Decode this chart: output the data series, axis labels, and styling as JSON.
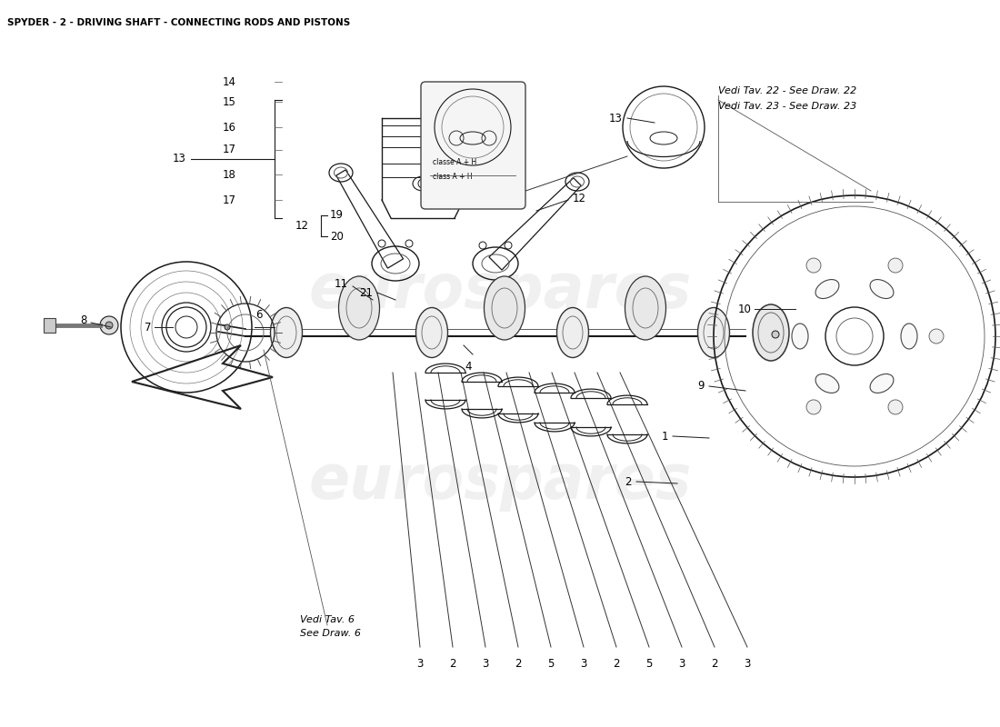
{
  "title": "SPYDER - 2 - DRIVING SHAFT - CONNECTING RODS AND PISTONS",
  "title_fontsize": 7.5,
  "bg_color": "#ffffff",
  "watermark_text": "eurospares",
  "watermark_color": "#cccccc",
  "watermark_fontsize": 48,
  "watermark_alpha": 0.28,
  "ref_note_1": "Vedi Tav. 22 - See Draw. 22",
  "ref_note_2": "Vedi Tav. 23 - See Draw. 23",
  "ref_note_3_line1": "Vedi Tav. 6",
  "ref_note_3_line2": "See Draw. 6",
  "class_note_line1": "classe A + H",
  "class_note_line2": "class A + H",
  "label_fontsize": 8.5,
  "line_color": "#1a1a1a",
  "part_color": "#1a1a1a"
}
